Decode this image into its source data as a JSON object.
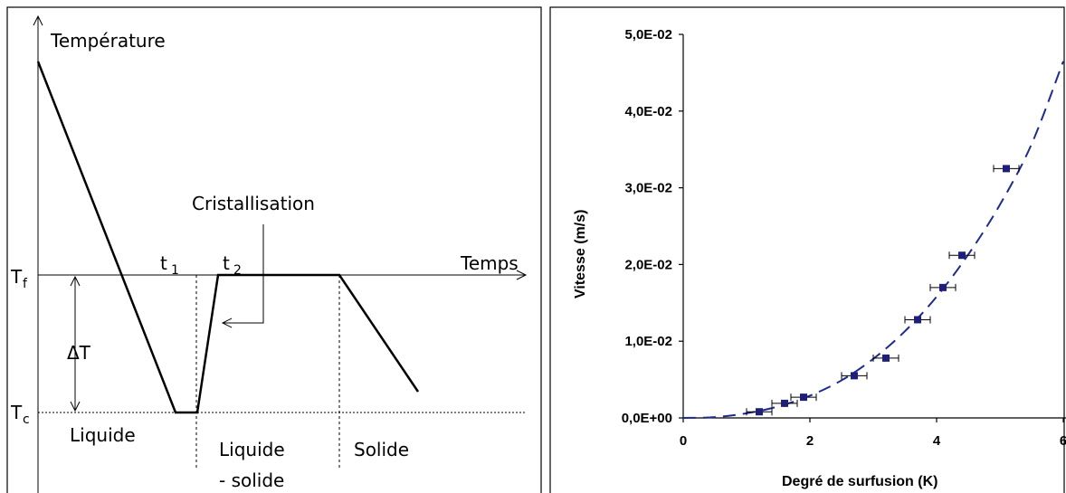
{
  "left_diagram": {
    "y_axis_label": "Température",
    "x_axis_label": "Temps",
    "tf_label": "T",
    "tf_sub": "f",
    "tc_label": "T",
    "tc_sub": "c",
    "delta_label": "ΔT",
    "t1_label": "t",
    "t1_sub": "1",
    "t2_label": "t",
    "t2_sub": "2",
    "annotation": "Cristallisation",
    "region_liquid": "Liquide",
    "region_mixed_1": "Liquide",
    "region_mixed_2": "- solide",
    "region_solid": "Solide"
  },
  "chart_data": {
    "type": "scatter",
    "title": "",
    "xlabel": "Degré de surfusion (K)",
    "ylabel": "Vitesse (m/s)",
    "xlim": [
      0,
      6
    ],
    "ylim": [
      0,
      0.05
    ],
    "x_ticks": [
      "0",
      "2",
      "4",
      "6"
    ],
    "x_tick_values": [
      0,
      2,
      4,
      6
    ],
    "y_ticks": [
      "0,0E+00",
      "1,0E-02",
      "2,0E-02",
      "3,0E-02",
      "4,0E-02",
      "5,0E-02"
    ],
    "y_tick_values": [
      0,
      0.01,
      0.02,
      0.03,
      0.04,
      0.05
    ],
    "points": [
      {
        "x": 1.2,
        "y": 0.0008,
        "xerr": 0.2
      },
      {
        "x": 1.6,
        "y": 0.0019,
        "xerr": 0.2
      },
      {
        "x": 1.9,
        "y": 0.0027,
        "xerr": 0.2
      },
      {
        "x": 2.7,
        "y": 0.0055,
        "xerr": 0.2
      },
      {
        "x": 3.2,
        "y": 0.0078,
        "xerr": 0.2
      },
      {
        "x": 3.7,
        "y": 0.0128,
        "xerr": 0.2
      },
      {
        "x": 4.1,
        "y": 0.017,
        "xerr": 0.2
      },
      {
        "x": 4.4,
        "y": 0.0212,
        "xerr": 0.2
      },
      {
        "x": 5.1,
        "y": 0.0325,
        "xerr": 0.2
      }
    ],
    "fit": {
      "style": "dashed",
      "x": [
        0,
        0.5,
        1,
        1.5,
        2,
        2.5,
        3,
        3.5,
        4,
        4.5,
        5,
        5.5,
        6
      ],
      "y": [
        0,
        0.0001,
        0.0006,
        0.0015,
        0.0029,
        0.0049,
        0.0077,
        0.0113,
        0.0158,
        0.0213,
        0.0278,
        0.0357,
        0.0465
      ]
    },
    "colors": {
      "marker": "#1f1f7a",
      "fit": "#1f2b8c"
    }
  }
}
